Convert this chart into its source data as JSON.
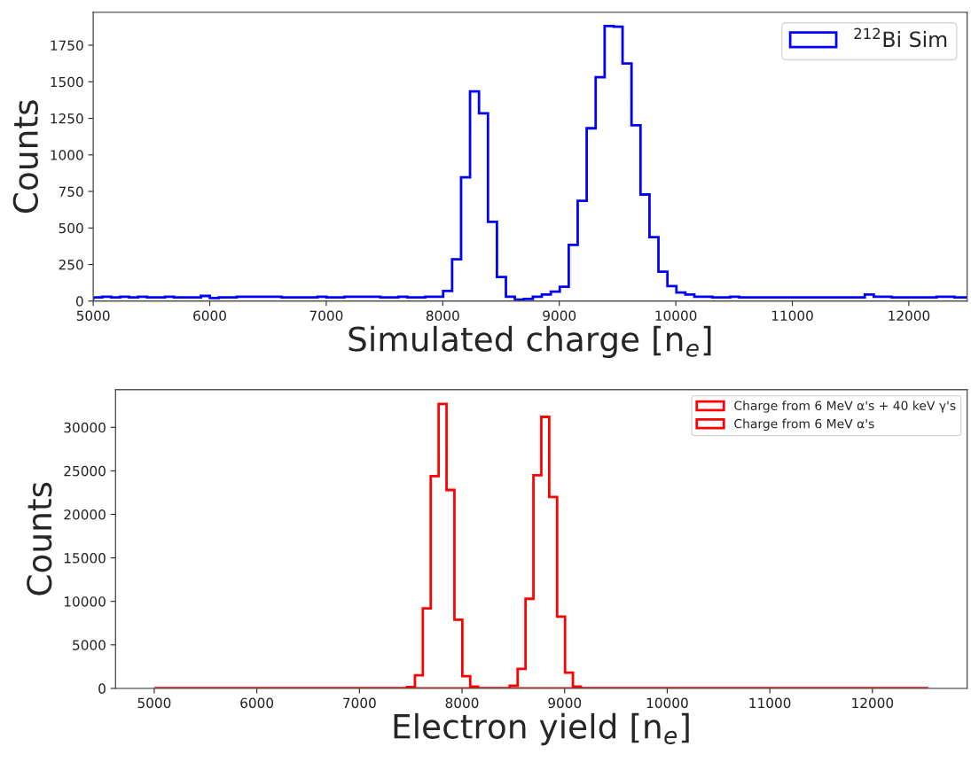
{
  "chart_data": [
    {
      "type": "histogram",
      "xlabel": "Simulated charge [n$_{e}$]",
      "ylabel": "Counts",
      "bins": [
        5000,
        5077,
        5154,
        5231,
        5308,
        5385,
        5462,
        5539,
        5616,
        5693,
        5770,
        5847,
        5924,
        6001,
        6078,
        6155,
        6232,
        6309,
        6386,
        6463,
        6540,
        6617,
        6694,
        6771,
        6848,
        6925,
        7002,
        7079,
        7156,
        7233,
        7310,
        7387,
        7464,
        7541,
        7618,
        7695,
        7772,
        7849,
        7926,
        8003,
        8080,
        8157,
        8234,
        8311,
        8388,
        8465,
        8542,
        8619,
        8696,
        8773,
        8850,
        8927,
        9004,
        9081,
        9158,
        9235,
        9312,
        9389,
        9466,
        9543,
        9620,
        9697,
        9774,
        9851,
        9928,
        10005,
        10082,
        10159,
        10236,
        10313,
        10390,
        10467,
        10544,
        10621,
        10698,
        10775,
        10852,
        10929,
        11006,
        11083,
        11160,
        11237,
        11314,
        11391,
        11468,
        11545,
        11622,
        11699,
        11776,
        11853,
        11930,
        12007,
        12084,
        12161,
        12238,
        12315,
        12392,
        12469,
        12546
      ],
      "series": [
        {
          "name": "$^{212}$Bi Sim",
          "color": "#0000ff",
          "values": [
            25,
            30,
            25,
            30,
            25,
            30,
            25,
            25,
            30,
            25,
            25,
            25,
            35,
            20,
            25,
            25,
            30,
            30,
            30,
            30,
            30,
            25,
            25,
            25,
            25,
            30,
            25,
            25,
            30,
            30,
            30,
            30,
            25,
            25,
            30,
            25,
            25,
            30,
            30,
            69,
            286,
            847,
            1434,
            1284,
            542,
            164,
            30,
            10,
            15,
            30,
            45,
            64,
            98,
            384,
            686,
            1182,
            1531,
            1881,
            1877,
            1625,
            1202,
            729,
            437,
            201,
            102,
            59,
            45,
            30,
            30,
            25,
            25,
            30,
            25,
            25,
            25,
            25,
            25,
            25,
            25,
            25,
            25,
            25,
            25,
            25,
            25,
            25,
            45,
            30,
            30,
            25,
            25,
            25,
            25,
            25,
            30,
            30,
            25,
            25
          ]
        }
      ],
      "xlim": [
        5000,
        12500
      ],
      "xticks": [
        5000,
        6000,
        7000,
        8000,
        9000,
        10000,
        11000,
        12000
      ],
      "ylim": [
        0,
        1975
      ],
      "yticks": [
        0,
        250,
        500,
        750,
        1000,
        1250,
        1500,
        1750
      ],
      "legend": "upper right",
      "grid": false
    },
    {
      "type": "histogram",
      "xlabel": "Electron yield [n$_{e}$]",
      "ylabel": "Counts",
      "bins": [
        5000,
        5077,
        5154,
        5231,
        5308,
        5385,
        5462,
        5539,
        5616,
        5693,
        5770,
        5847,
        5924,
        6001,
        6078,
        6155,
        6232,
        6309,
        6386,
        6463,
        6540,
        6617,
        6694,
        6771,
        6848,
        6925,
        7002,
        7079,
        7156,
        7233,
        7310,
        7387,
        7464,
        7541,
        7618,
        7695,
        7772,
        7849,
        7926,
        8003,
        8080,
        8157,
        8234,
        8311,
        8388,
        8465,
        8542,
        8619,
        8696,
        8773,
        8850,
        8927,
        9004,
        9081,
        9158,
        9235,
        9312,
        9389,
        9466,
        9543,
        9620,
        9697,
        9774,
        9851,
        9928,
        10005,
        10082,
        10159,
        10236,
        10313,
        10390,
        10467,
        10544,
        10621,
        10698,
        10775,
        10852,
        10929,
        11006,
        11083,
        11160,
        11237,
        11314,
        11391,
        11468,
        11545,
        11622,
        11699,
        11776,
        11853,
        11930,
        12007,
        12084,
        12161,
        12238,
        12315,
        12392,
        12469,
        12546
      ],
      "series": [
        {
          "name": "Charge from 6 MeV α's + 40 keV γ's",
          "color": "#ff0000",
          "values": [
            0,
            0,
            0,
            0,
            0,
            0,
            0,
            0,
            0,
            0,
            0,
            0,
            0,
            0,
            0,
            0,
            0,
            0,
            0,
            0,
            0,
            0,
            0,
            0,
            0,
            0,
            0,
            0,
            0,
            0,
            0,
            0,
            0,
            0,
            0,
            0,
            0,
            0,
            0,
            0,
            0,
            0,
            0,
            0,
            0,
            300,
            2240,
            10300,
            24500,
            31200,
            22000,
            8250,
            1800,
            200,
            0,
            0,
            0,
            0,
            0,
            0,
            0,
            0,
            0,
            0,
            0,
            0,
            0,
            0,
            0,
            0,
            0,
            0,
            0,
            0,
            0,
            0,
            0,
            0,
            0,
            0,
            0,
            0,
            0,
            0,
            0,
            0,
            0,
            0,
            0,
            0,
            0,
            0,
            0,
            0,
            0,
            0,
            0,
            0
          ]
        },
        {
          "name": "Charge from 6 MeV α's",
          "color": "#ff0000",
          "values": [
            0,
            0,
            0,
            0,
            0,
            0,
            0,
            0,
            0,
            0,
            0,
            0,
            0,
            0,
            0,
            0,
            0,
            0,
            0,
            0,
            0,
            0,
            0,
            0,
            0,
            0,
            0,
            0,
            0,
            0,
            0,
            0,
            150,
            1500,
            9200,
            24400,
            32700,
            22800,
            7900,
            1400,
            200,
            0,
            0,
            0,
            0,
            0,
            0,
            0,
            0,
            0,
            0,
            0,
            0,
            0,
            0,
            0,
            0,
            0,
            0,
            0,
            0,
            0,
            0,
            0,
            0,
            0,
            0,
            0,
            0,
            0,
            0,
            0,
            0,
            0,
            0,
            0,
            0,
            0,
            0,
            0,
            0,
            0,
            0,
            0,
            0,
            0,
            0,
            0,
            0,
            0,
            0,
            0,
            0,
            0,
            0,
            0,
            0,
            0
          ]
        }
      ],
      "xlim": [
        4623,
        12923
      ],
      "xticks": [
        5000,
        6000,
        7000,
        8000,
        9000,
        10000,
        11000,
        12000
      ],
      "ylim": [
        0,
        34335
      ],
      "yticks": [
        0,
        5000,
        10000,
        15000,
        20000,
        25000,
        30000
      ],
      "legend": "upper right",
      "grid": false
    }
  ]
}
